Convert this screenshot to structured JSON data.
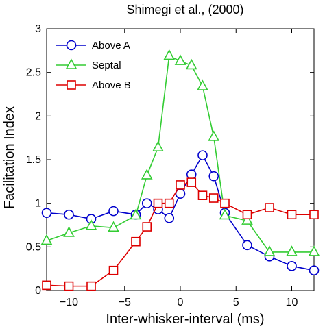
{
  "chart_data": {
    "type": "line",
    "title": "Shimegi et al., (2000)",
    "xlabel": "Inter-whisker-interval (ms)",
    "ylabel": "Facilitation Index",
    "xlim": [
      -12,
      12
    ],
    "ylim": [
      0,
      3
    ],
    "xticks": [
      -10,
      -5,
      0,
      5,
      10
    ],
    "yticks": [
      0,
      0.5,
      1,
      1.5,
      2,
      2.5,
      3
    ],
    "xtick_labels": [
      "−10",
      "−5",
      "0",
      "5",
      "10"
    ],
    "ytick_labels": [
      "0",
      "0.5",
      "1",
      "1.5",
      "2",
      "2.5",
      "3"
    ],
    "grid": false,
    "legend_position": "top-left",
    "series": [
      {
        "name": "Above A",
        "color": "#0000cc",
        "marker": "circle",
        "x": [
          -12,
          -10,
          -8,
          -6,
          -4,
          -3,
          -2,
          -1,
          0,
          1,
          2,
          3,
          4,
          6,
          8,
          10,
          12
        ],
        "y": [
          0.89,
          0.87,
          0.82,
          0.91,
          0.87,
          1.0,
          0.93,
          0.83,
          1.11,
          1.33,
          1.55,
          1.31,
          0.89,
          0.52,
          0.39,
          0.28,
          0.23
        ]
      },
      {
        "name": "Septal",
        "color": "#33cc33",
        "marker": "triangle",
        "x": [
          -12,
          -10,
          -8,
          -6,
          -4,
          -3,
          -2,
          -1,
          0,
          1,
          2,
          3,
          4,
          6,
          8,
          10,
          12
        ],
        "y": [
          0.57,
          0.66,
          0.74,
          0.72,
          0.86,
          1.32,
          1.64,
          2.69,
          2.63,
          2.58,
          2.34,
          1.76,
          0.86,
          0.8,
          0.44,
          0.44,
          0.44
        ]
      },
      {
        "name": "Above B",
        "color": "#dd0000",
        "marker": "square",
        "x": [
          -12,
          -10,
          -8,
          -6,
          -4,
          -3,
          -2,
          -1,
          0,
          1,
          2,
          3,
          4,
          6,
          8,
          10,
          12
        ],
        "y": [
          0.06,
          0.05,
          0.05,
          0.23,
          0.56,
          0.73,
          1.0,
          1.0,
          1.21,
          1.24,
          1.09,
          1.06,
          1.0,
          0.87,
          0.95,
          0.87,
          0.87
        ]
      }
    ]
  }
}
